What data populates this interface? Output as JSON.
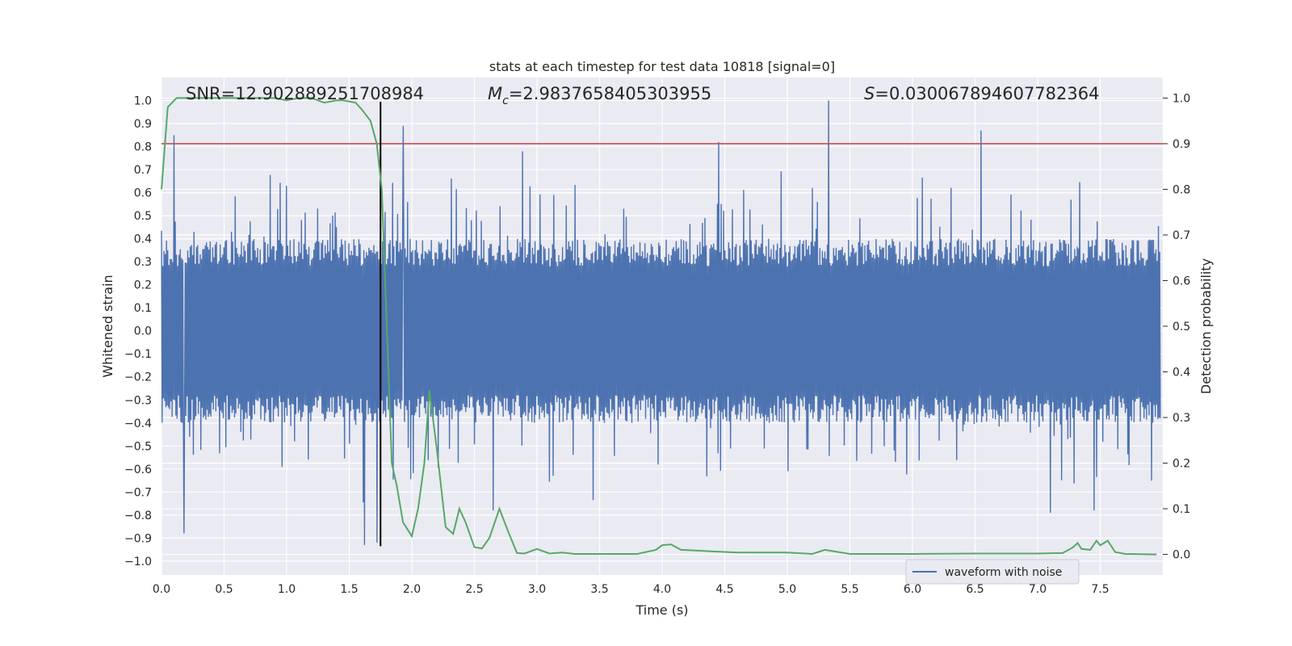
{
  "chart_data": {
    "type": "line",
    "title": "stats at each timestep for test data 10818 [signal=0]",
    "xlabel": "Time (s)",
    "ylabel_left": "Whitened strain",
    "ylabel_right": "Detection probability",
    "xlim": [
      0.0,
      8.0
    ],
    "ylim_left": [
      -1.06,
      1.1
    ],
    "ylim_right": [
      -0.045,
      1.045
    ],
    "x_ticks": [
      0.0,
      0.5,
      1.0,
      1.5,
      2.0,
      2.5,
      3.0,
      3.5,
      4.0,
      4.5,
      5.0,
      5.5,
      6.0,
      6.5,
      7.0,
      7.5
    ],
    "x_tick_labels": [
      "0.0",
      "0.5",
      "1.0",
      "1.5",
      "2.0",
      "2.5",
      "3.0",
      "3.5",
      "4.0",
      "4.5",
      "5.0",
      "5.5",
      "6.0",
      "6.5",
      "7.0",
      "7.5"
    ],
    "y_left_ticks": [
      1.0,
      0.9,
      0.8,
      0.7,
      0.6,
      0.5,
      0.4,
      0.3,
      0.2,
      0.1,
      0.0,
      -0.1,
      -0.2,
      -0.3,
      -0.4,
      -0.5,
      -0.6,
      -0.7,
      -0.8,
      -0.9,
      -1.0
    ],
    "y_left_tick_labels": [
      "1.0",
      "0.9",
      "0.8",
      "0.7",
      "0.6",
      "0.5",
      "0.4",
      "0.3",
      "0.2",
      "0.1",
      "0.0",
      "−0.1",
      "−0.2",
      "−0.3",
      "−0.4",
      "−0.5",
      "−0.6",
      "−0.7",
      "−0.8",
      "−0.9",
      "−1.0"
    ],
    "y_right_ticks": [
      1.0,
      0.9,
      0.8,
      0.7,
      0.6,
      0.5,
      0.4,
      0.3,
      0.2,
      0.1,
      0.0
    ],
    "y_right_tick_labels": [
      "1.0",
      "0.9",
      "0.8",
      "0.7",
      "0.6",
      "0.5",
      "0.4",
      "0.3",
      "0.2",
      "0.1",
      "0.0"
    ],
    "annotations": {
      "snr": "SNR=12.902889251708984",
      "mc_prefix": "M",
      "mc_sub": "c",
      "mc_value": "=2.9837658405303955",
      "s_prefix": "S",
      "s_value": "=0.030067894607782364"
    },
    "threshold_right": 0.9,
    "detection_time": 1.75,
    "waveform": {
      "name": "waveform with noise",
      "color": "#4c72b0",
      "n_points": 1600,
      "seed": 10818,
      "typical_abs": 0.28,
      "peak_values": [
        [
          0.1,
          0.85
        ],
        [
          1.93,
          0.89
        ],
        [
          4.45,
          0.82
        ],
        [
          5.33,
          1.0
        ],
        [
          6.55,
          0.87
        ],
        [
          1.62,
          -0.93
        ],
        [
          1.72,
          -0.92
        ],
        [
          0.18,
          -0.88
        ],
        [
          7.1,
          -0.79
        ],
        [
          7.45,
          -0.78
        ],
        [
          2.65,
          -0.78
        ]
      ]
    },
    "probability": {
      "color": "#55a868",
      "x": [
        0.0,
        0.05,
        0.12,
        0.2,
        0.3,
        0.5,
        0.7,
        0.9,
        1.0,
        1.1,
        1.2,
        1.3,
        1.4,
        1.45,
        1.55,
        1.6,
        1.67,
        1.72,
        1.76,
        1.8,
        1.84,
        1.88,
        1.93,
        2.0,
        2.05,
        2.1,
        2.14,
        2.2,
        2.27,
        2.33,
        2.38,
        2.43,
        2.5,
        2.56,
        2.62,
        2.7,
        2.77,
        2.84,
        2.9,
        3.0,
        3.1,
        3.2,
        3.3,
        3.5,
        3.8,
        3.95,
        4.0,
        4.07,
        4.15,
        4.3,
        4.6,
        5.0,
        5.2,
        5.3,
        5.5,
        6.0,
        6.5,
        7.0,
        7.2,
        7.28,
        7.32,
        7.35,
        7.42,
        7.47,
        7.5,
        7.56,
        7.62,
        7.7,
        7.95
      ],
      "y": [
        0.8,
        0.98,
        1.0,
        1.0,
        1.0,
        1.0,
        1.0,
        1.0,
        0.995,
        1.0,
        1.0,
        0.99,
        0.995,
        0.995,
        0.99,
        0.975,
        0.95,
        0.9,
        0.8,
        0.5,
        0.2,
        0.15,
        0.07,
        0.04,
        0.1,
        0.2,
        0.36,
        0.23,
        0.06,
        0.045,
        0.1,
        0.07,
        0.016,
        0.013,
        0.036,
        0.1,
        0.05,
        0.003,
        0.002,
        0.012,
        0.002,
        0.004,
        0.001,
        0.001,
        0.001,
        0.01,
        0.02,
        0.022,
        0.01,
        0.008,
        0.004,
        0.004,
        0.001,
        0.01,
        0.001,
        0.001,
        0.002,
        0.002,
        0.003,
        0.015,
        0.025,
        0.012,
        0.01,
        0.03,
        0.02,
        0.03,
        0.005,
        0.001,
        0.0
      ]
    },
    "legend": {
      "label": "waveform with noise",
      "position": "lower-center"
    },
    "threshold_color": "#c44e52",
    "detection_line_color": "#000000"
  }
}
